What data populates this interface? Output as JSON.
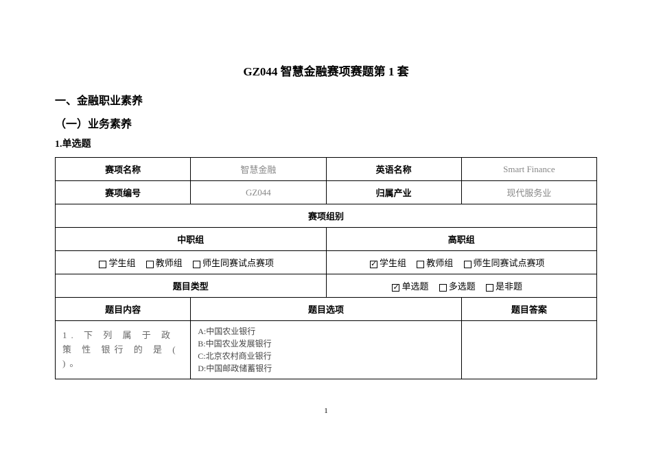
{
  "title": "GZ044 智慧金融赛项赛题第 1 套",
  "section1": "一、金融职业素养",
  "section2": "（一）业务素养",
  "section3": "1.单选题",
  "table": {
    "r1": {
      "c1": "赛项名称",
      "c2": "智慧金融",
      "c3": "英语名称",
      "c4": "Smart Finance"
    },
    "r2": {
      "c1": "赛项编号",
      "c2": "GZ044",
      "c3": "归属产业",
      "c4": "现代服务业"
    },
    "r3": {
      "c1": "赛项组别"
    },
    "r4": {
      "c1": "中职组",
      "c2": "高职组"
    },
    "r5": {
      "left": {
        "cb1": "学生组",
        "cb2": "教师组",
        "cb3": "师生同赛试点赛项"
      },
      "right": {
        "cb1": "学生组",
        "cb2": "教师组",
        "cb3": "师生同赛试点赛项"
      }
    },
    "r6": {
      "c1": "题目类型",
      "right": {
        "cb1": "单选题",
        "cb2": "多选题",
        "cb3": "是非题"
      }
    },
    "r7": {
      "c1": "题目内容",
      "c2": "题目选项",
      "c3": "题目答案"
    },
    "r8": {
      "question": "1. 下 列 属 于 政 策 性 银行 的 是 (   )。",
      "optA": "A:中国农业银行",
      "optB": "B:中国农业发展银行",
      "optC": "C:北京农村商业银行",
      "optD": "D:中国邮政储蓄银行"
    }
  },
  "pagenum": "1"
}
